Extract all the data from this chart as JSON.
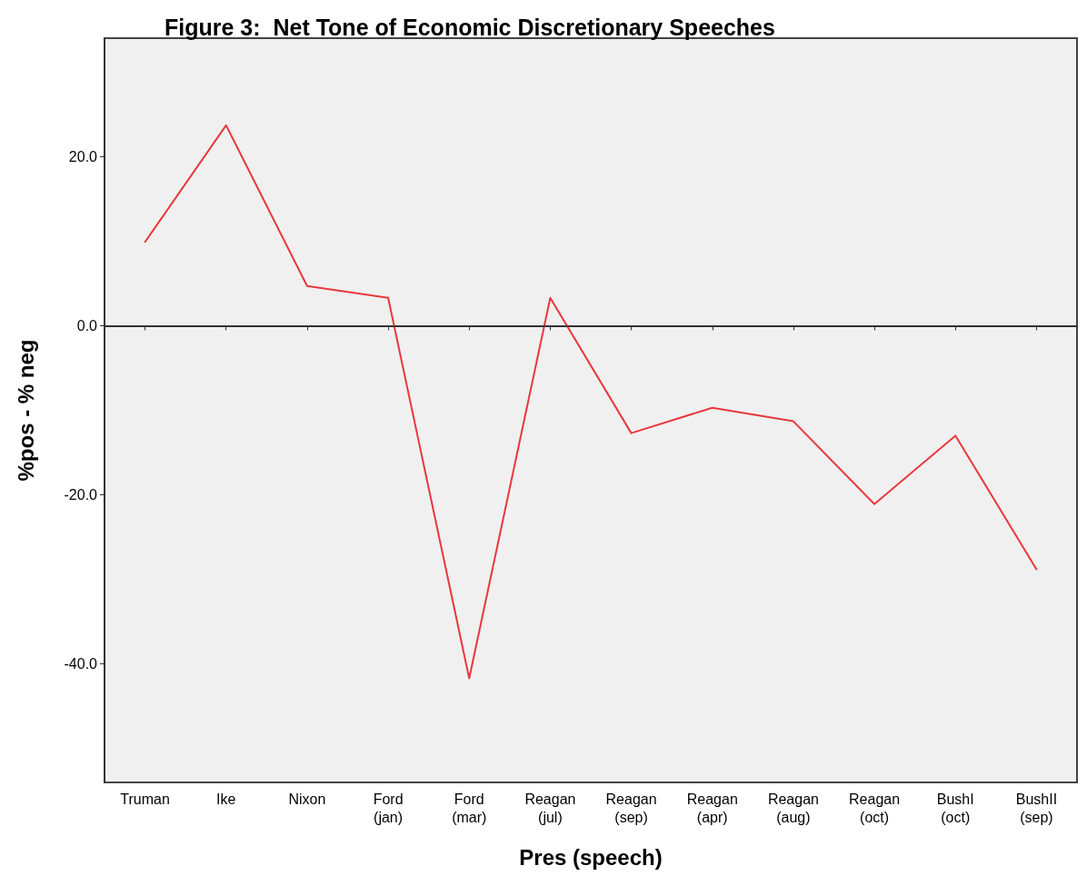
{
  "chart_data": {
    "type": "line",
    "title": "Figure 3:  Net Tone of Economic Discretionary Speeches",
    "xlabel": "Pres (speech)",
    "ylabel": "%pos - % neg",
    "categories": [
      "Truman",
      "Ike",
      "Nixon",
      "Ford\n(jan)",
      "Ford\n(mar)",
      "Reagan\n(jul)",
      "Reagan\n(sep)",
      "Reagan\n(apr)",
      "Reagan\n(aug)",
      "Reagan\n(oct)",
      "BushI\n(oct)",
      "BushII\n(sep)"
    ],
    "series": [
      {
        "color": "#e8383d",
        "values": [
          9.9,
          23.7,
          4.7,
          3.3,
          -41.7,
          3.3,
          -12.7,
          -9.7,
          -11.3,
          -21.1,
          -13.0,
          -28.8
        ]
      }
    ],
    "ylim": [
      -54,
      34
    ],
    "yticks": [
      {
        "value": -40,
        "label": "-40.0"
      },
      {
        "value": -20,
        "label": "-20.0"
      },
      {
        "value": 0,
        "label": "0.0"
      },
      {
        "value": 20,
        "label": "20.0"
      }
    ],
    "ref_lines": [
      {
        "axis": "y",
        "value": 0,
        "color": "#333333"
      }
    ],
    "grid": false,
    "marker": "none",
    "line_style": "solid"
  }
}
